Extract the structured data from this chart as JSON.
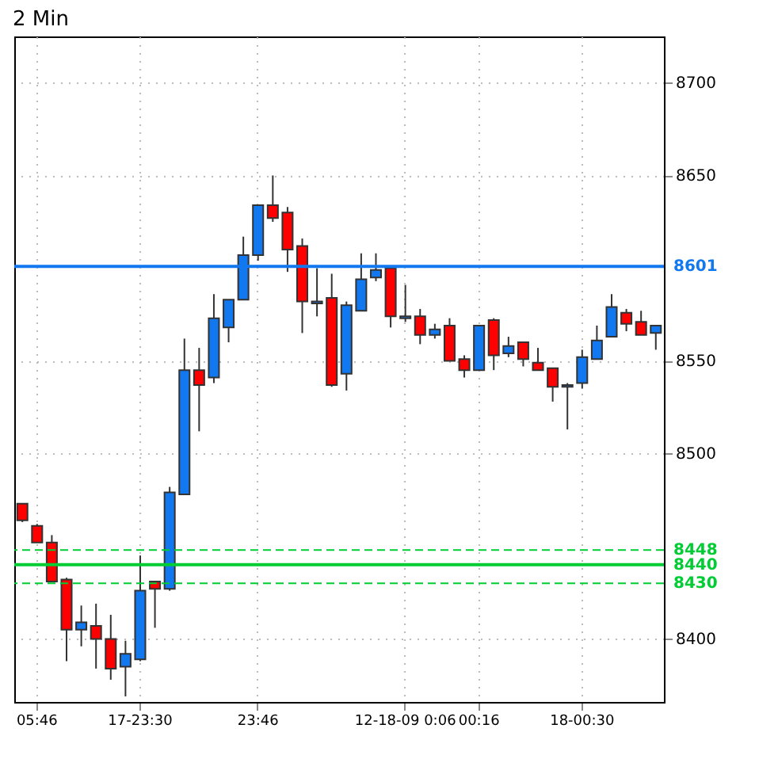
{
  "chart_data": {
    "type": "candlestick",
    "title": "2 Min",
    "categories": [
      null,
      "05:46",
      null,
      null,
      null,
      null,
      null,
      null,
      "17-23:30",
      null,
      null,
      null,
      null,
      null,
      null,
      null,
      "23:46",
      null,
      null,
      null,
      null,
      null,
      null,
      null,
      null,
      null,
      "12-18-09 0:06",
      null,
      null,
      null,
      null,
      "00:16",
      null,
      null,
      null,
      null,
      null,
      null,
      "18-00:30",
      null,
      null,
      null,
      null,
      null
    ],
    "ohlc": [
      [
        8473,
        8473,
        8463,
        8464
      ],
      [
        8461,
        8462,
        8452,
        8452
      ],
      [
        8452,
        8456,
        8431,
        8431
      ],
      [
        8432,
        8433,
        8388,
        8405
      ],
      [
        8405,
        8418,
        8396,
        8409
      ],
      [
        8407,
        8419,
        8384,
        8400
      ],
      [
        8400,
        8413,
        8378,
        8384
      ],
      [
        8385,
        8399,
        8369,
        8392
      ],
      [
        8389,
        8445,
        8388,
        8426
      ],
      [
        8431,
        8431,
        8406,
        8427
      ],
      [
        8427,
        8482,
        8426,
        8479
      ],
      [
        8478,
        8562,
        8478,
        8545
      ],
      [
        8545,
        8557,
        8512,
        8537
      ],
      [
        8541,
        8586,
        8538,
        8573
      ],
      [
        8568,
        8583,
        8560,
        8583
      ],
      [
        8583,
        8617,
        8583,
        8607
      ],
      [
        8607,
        8634,
        8604,
        8634
      ],
      [
        8634,
        8650,
        8625,
        8627
      ],
      [
        8630,
        8633,
        8598,
        8610
      ],
      [
        8612,
        8616,
        8565,
        8582
      ],
      [
        8581,
        8600,
        8574,
        8582
      ],
      [
        8584,
        8597,
        8536,
        8537
      ],
      [
        8543,
        8582,
        8534,
        8580
      ],
      [
        8577,
        8608,
        8577,
        8594
      ],
      [
        8595,
        8608,
        8593,
        8599
      ],
      [
        8600,
        8600,
        8568,
        8574
      ],
      [
        8573,
        8591,
        8571,
        8574
      ],
      [
        8574,
        8578,
        8559,
        8564
      ],
      [
        8564,
        8570,
        8562,
        8567
      ],
      [
        8569,
        8573,
        8550,
        8550
      ],
      [
        8551,
        8553,
        8541,
        8545
      ],
      [
        8545,
        8569,
        8545,
        8569
      ],
      [
        8572,
        8573,
        8545,
        8553
      ],
      [
        8554,
        8563,
        8552,
        8558
      ],
      [
        8560,
        8560,
        8547,
        8551
      ],
      [
        8549,
        8557,
        8545,
        8545
      ],
      [
        8546,
        8546,
        8528,
        8536
      ],
      [
        8536,
        8538,
        8513,
        8537
      ],
      [
        8538,
        8556,
        8535,
        8552
      ],
      [
        8551,
        8569,
        8551,
        8561
      ],
      [
        8563,
        8586,
        8563,
        8579
      ],
      [
        8576,
        8578,
        8566,
        8570
      ],
      [
        8571,
        8577,
        8564,
        8564
      ],
      [
        8565,
        8569,
        8556,
        8569
      ]
    ],
    "colors": [
      "#ff0000",
      "#ff0000",
      "#ff0000",
      "#ff0000",
      "#1278f0",
      "#ff0000",
      "#ff0000",
      "#1278f0",
      "#1278f0",
      "#ff0000",
      "#1278f0",
      "#1278f0",
      "#ff0000",
      "#1278f0",
      "#1278f0",
      "#1278f0",
      "#1278f0",
      "#ff0000",
      "#ff0000",
      "#ff0000",
      "#1278f0",
      "#ff0000",
      "#1278f0",
      "#1278f0",
      "#1278f0",
      "#ff0000",
      "#1278f0",
      "#ff0000",
      "#1278f0",
      "#ff0000",
      "#ff0000",
      "#1278f0",
      "#ff0000",
      "#1278f0",
      "#ff0000",
      "#ff0000",
      "#ff0000",
      "#1278f0",
      "#1278f0",
      "#1278f0",
      "#1278f0",
      "#ff0000",
      "#ff0000",
      "#1278f0"
    ],
    "ylim": [
      8366,
      8725
    ],
    "yticks": [
      8400,
      8500,
      8550,
      8650,
      8700
    ],
    "grid": true,
    "ref_lines": [
      {
        "axis": "y",
        "value": 8601,
        "label": "8601",
        "color": "#1278f0",
        "line_style": "solid"
      },
      {
        "axis": "y",
        "value": 8448,
        "label": "8448",
        "color": "#00cc33",
        "line_style": "dashed"
      },
      {
        "axis": "y",
        "value": 8440,
        "label": "8440",
        "color": "#00cc33",
        "line_style": "solid"
      },
      {
        "axis": "y",
        "value": 8430,
        "label": "8430",
        "color": "#00cc33",
        "line_style": "dashed"
      }
    ]
  }
}
